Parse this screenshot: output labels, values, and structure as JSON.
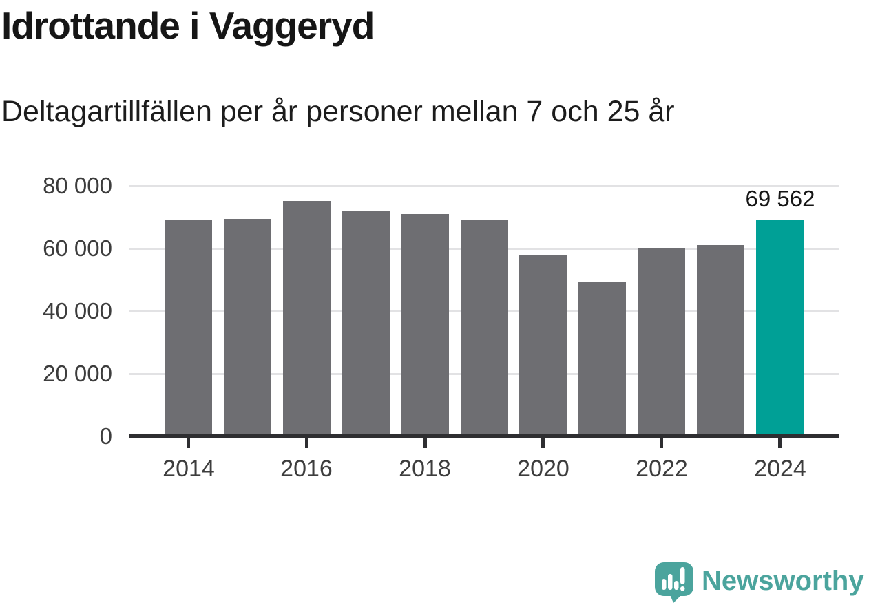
{
  "header": {
    "title": "Idrottande i Vaggeryd",
    "subtitle": "Deltagartillfällen per år personer mellan 7 och 25 år"
  },
  "chart_data": {
    "type": "bar",
    "title": "Idrottande i Vaggeryd",
    "subtitle": "Deltagartillfällen per år personer mellan 7 och 25 år",
    "categories": [
      "2014",
      "2015",
      "2016",
      "2017",
      "2018",
      "2019",
      "2020",
      "2021",
      "2022",
      "2023",
      "2024"
    ],
    "values": [
      69700,
      69900,
      75700,
      72700,
      71600,
      69600,
      58300,
      49700,
      60800,
      61600,
      69562
    ],
    "highlight_index": 10,
    "annotation": {
      "index": 10,
      "text": "69 562"
    },
    "y_axis": {
      "range": [
        0,
        80000
      ],
      "ticks": [
        0,
        20000,
        40000,
        60000,
        80000
      ],
      "tick_labels": [
        "0",
        "20 000",
        "40 000",
        "60 000",
        "80 000"
      ]
    },
    "x_axis": {
      "tick_indices": [
        0,
        2,
        4,
        6,
        8,
        10
      ],
      "tick_labels": [
        "2014",
        "2016",
        "2018",
        "2020",
        "2022",
        "2024"
      ]
    },
    "grid": "horizontal",
    "legend": "none",
    "colors": {
      "bar": "#6e6e72",
      "highlight": "#00a096",
      "grid": "#e2e2e4",
      "axis": "#2e2e31",
      "tick_text": "#3d3d3d",
      "text": "#161616"
    }
  },
  "branding": {
    "text": "Newsworthy",
    "color": "#4ba49d",
    "icon": "newsworthy-speech-bubble-chart-icon"
  }
}
